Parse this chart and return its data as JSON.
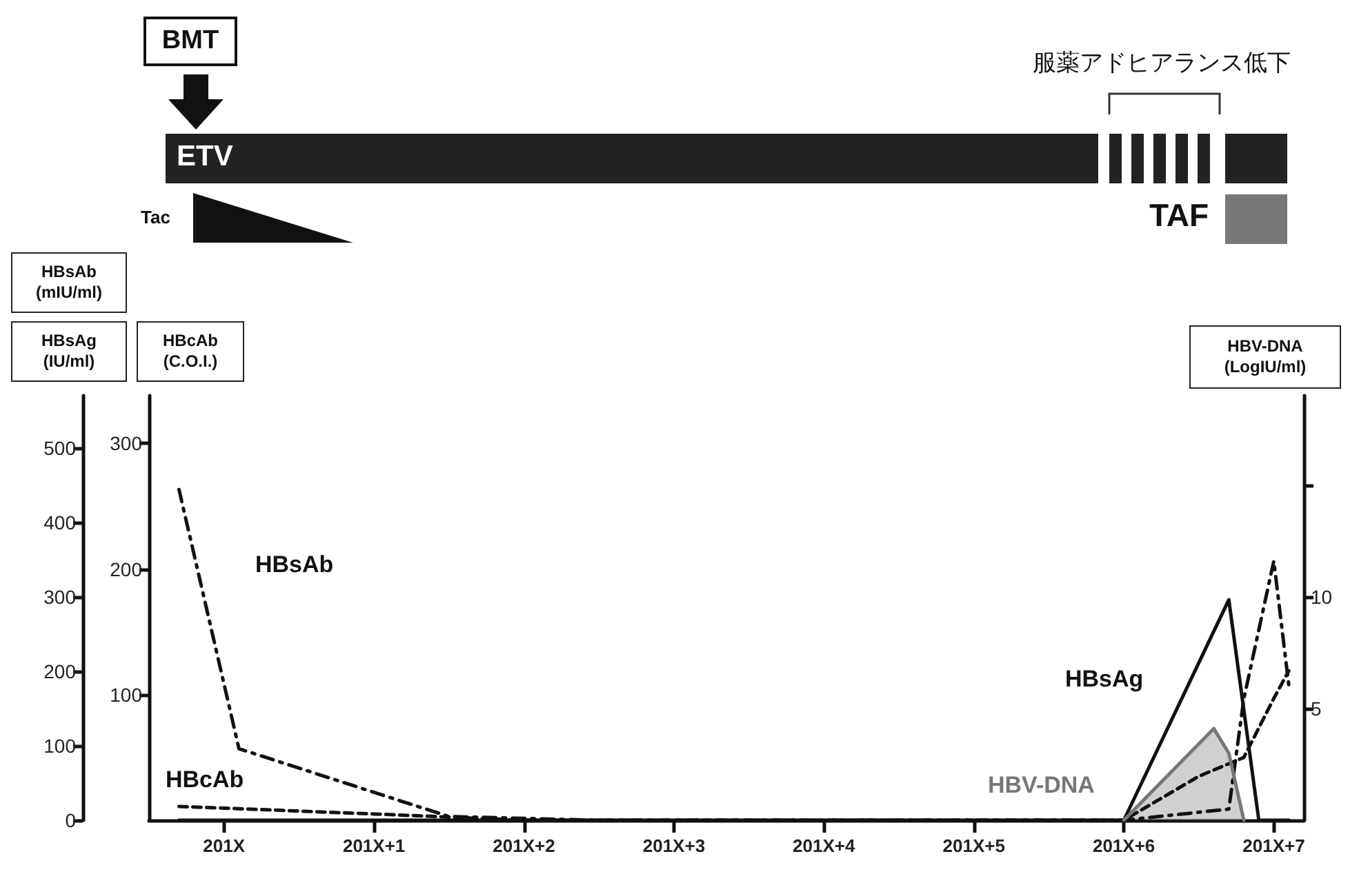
{
  "chart_data": {
    "type": "line",
    "ylabel": "HBsAg (IU/ml)",
    "y2label": "HBcAb (C.O.I.)",
    "y3label": "HBV-DNA (LogIU/ml)",
    "annotations": [
      "HBsAb (mIU/ml)",
      "BMT",
      "ETV",
      "Tac",
      "TAF",
      "服薬アドヒアランス低下"
    ],
    "categories": [
      null,
      null,
      null,
      null,
      null,
      "201X",
      null,
      null,
      null,
      null,
      null,
      null,
      null,
      null,
      null,
      "201X+1",
      null,
      null,
      null,
      null,
      null,
      null,
      null,
      null,
      null,
      "201X+2",
      null,
      null,
      null,
      null,
      null,
      null,
      null,
      null,
      null,
      "201X+3",
      null,
      null,
      null,
      null,
      null,
      null,
      null,
      null,
      null,
      "201X+4",
      null,
      null,
      null,
      null,
      null,
      null,
      null,
      null,
      null,
      "201X+5",
      null,
      null,
      null,
      null,
      null,
      null,
      null,
      null,
      null,
      "201X+6",
      null,
      null,
      null,
      null,
      null,
      null,
      null,
      null,
      null,
      "201X+7",
      null,
      null
    ],
    "ylim": [
      0,
      570
    ],
    "yticks": [
      0,
      100,
      200,
      300,
      400,
      500
    ],
    "y2lim": [
      0,
      338
    ],
    "y2ticks": [
      100,
      200,
      300
    ],
    "y3lim": [
      0,
      19
    ],
    "y3ticks": [
      5,
      10,
      {
        "value": 15,
        "label": null
      }
    ],
    "grid": false,
    "legend": false,
    "marker": "none",
    "series": [
      {
        "name": "HBsAb",
        "color": "#111111",
        "line_style": "dashdot",
        "values": [
          null,
          null,
          444,
          null,
          null,
          null,
          96,
          null,
          null,
          null,
          null,
          null,
          null,
          null,
          null,
          null,
          null,
          null,
          null,
          null,
          5,
          null,
          null,
          null,
          null,
          null,
          null,
          null,
          null,
          null,
          0,
          null,
          null,
          null,
          null,
          null,
          null,
          null,
          null,
          null,
          null,
          null,
          null,
          null,
          null,
          null,
          null,
          null,
          null,
          null,
          null,
          null,
          null,
          null,
          null,
          null,
          null,
          null,
          null,
          null,
          null,
          null,
          null,
          null,
          null,
          0,
          null,
          null,
          null,
          null,
          null,
          null,
          15,
          163,
          null,
          348,
          181,
          null
        ]
      },
      {
        "name": "HBcAb",
        "color": "#111111",
        "line_style": "dashed",
        "axis": "y2",
        "values": [
          null,
          null,
          11,
          null,
          null,
          null,
          null,
          null,
          null,
          null,
          null,
          null,
          null,
          null,
          null,
          5,
          null,
          null,
          null,
          null,
          null,
          null,
          null,
          null,
          null,
          0,
          null,
          null,
          null,
          null,
          null,
          null,
          null,
          null,
          null,
          null,
          null,
          null,
          null,
          null,
          null,
          null,
          null,
          null,
          null,
          null,
          null,
          null,
          null,
          null,
          null,
          null,
          null,
          null,
          null,
          null,
          null,
          null,
          null,
          null,
          null,
          null,
          null,
          null,
          null,
          0,
          null,
          null,
          null,
          null,
          35,
          null,
          null,
          50,
          null,
          97,
          119,
          null
        ]
      },
      {
        "name": "HBsAg",
        "color": "#111111",
        "line_style": "solid",
        "values": [
          null,
          null,
          0,
          null,
          null,
          null,
          null,
          null,
          null,
          null,
          null,
          null,
          null,
          null,
          null,
          null,
          null,
          null,
          null,
          null,
          null,
          null,
          null,
          null,
          null,
          null,
          null,
          null,
          null,
          null,
          null,
          null,
          null,
          null,
          null,
          null,
          null,
          null,
          null,
          null,
          null,
          null,
          null,
          null,
          null,
          null,
          null,
          null,
          null,
          null,
          null,
          null,
          null,
          null,
          null,
          null,
          null,
          null,
          null,
          null,
          null,
          null,
          null,
          null,
          null,
          0,
          null,
          null,
          null,
          null,
          null,
          null,
          296,
          null,
          0,
          null,
          0,
          null
        ]
      },
      {
        "name": "HBV-DNA",
        "type": "area",
        "color": "#777777",
        "line_style": "solid",
        "axis": "y3",
        "values": [
          null,
          null,
          null,
          null,
          null,
          null,
          null,
          null,
          null,
          null,
          null,
          null,
          null,
          null,
          null,
          null,
          null,
          null,
          null,
          null,
          null,
          null,
          null,
          null,
          null,
          null,
          null,
          null,
          null,
          null,
          null,
          null,
          null,
          null,
          null,
          null,
          null,
          null,
          null,
          null,
          null,
          null,
          null,
          null,
          null,
          null,
          null,
          null,
          null,
          null,
          null,
          null,
          null,
          null,
          null,
          null,
          null,
          null,
          null,
          null,
          null,
          null,
          null,
          null,
          null,
          0,
          null,
          null,
          null,
          null,
          null,
          4.1,
          3.0,
          0,
          null,
          null,
          null,
          null
        ]
      }
    ]
  }
}
